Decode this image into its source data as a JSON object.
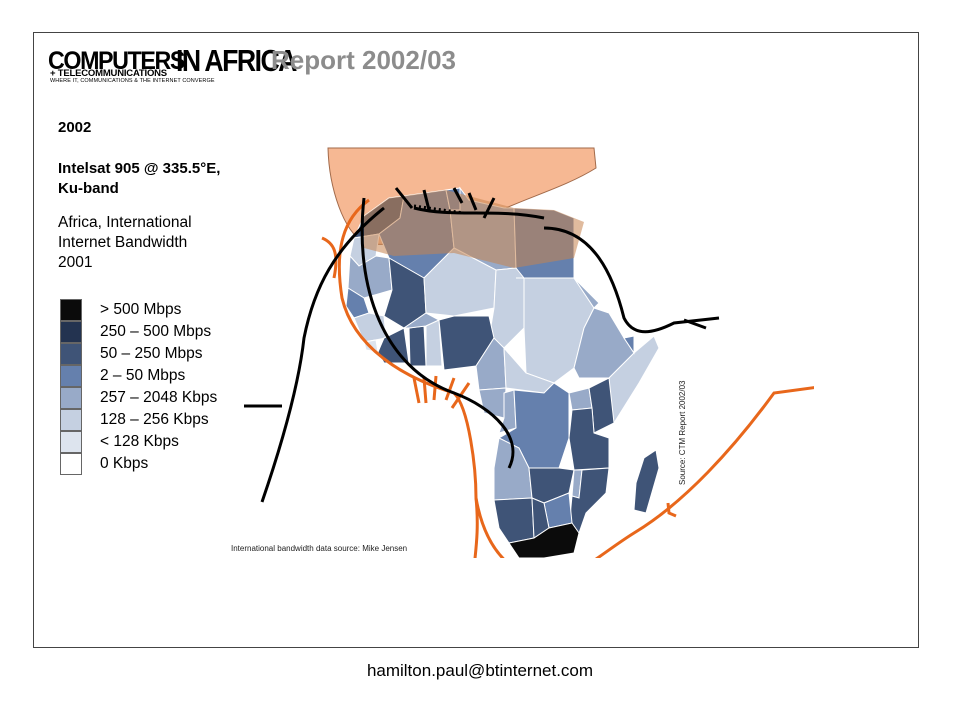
{
  "header": {
    "logo_main": "COMPUTERS",
    "logo_africa": "IN AFRICA",
    "logo_sub1": "+ TELECOMMUNICATIONS",
    "logo_sub2": "WHERE IT, COMMUNICATIONS & THE INTERNET CONVERGE",
    "report_title": "Report 2002/03"
  },
  "info": {
    "year": "2002",
    "satellite_line1": "Intelsat 905 @ 335.5°E,",
    "satellite_line2": "Ku-band",
    "desc_line1": "Africa, International",
    "desc_line2": "Internet Bandwidth",
    "desc_line3": "2001"
  },
  "legend": [
    {
      "label": "> 500 Mbps",
      "color": "#0b0b0b"
    },
    {
      "label": "250 – 500 Mbps",
      "color": "#233350"
    },
    {
      "label": "50 – 250 Mbps",
      "color": "#3f5477"
    },
    {
      "label": "2 – 50 Mbps",
      "color": "#6580ad"
    },
    {
      "label": "257 – 2048 Kbps",
      "color": "#98aac8"
    },
    {
      "label": "128 – 256 Kbps",
      "color": "#c5d0e1"
    },
    {
      "label": "< 128 Kbps",
      "color": "#dde4ee"
    },
    {
      "label": "0 Kbps",
      "color": "#ffffff"
    }
  ],
  "sources": {
    "bandwidth": "International bandwidth data source: Mike Jensen",
    "ctm": "Source: CTM Report 2002/03"
  },
  "footer": {
    "email": "hamilton.paul@btinternet.com"
  },
  "colors": {
    "beam": "#f6b893",
    "cable_orange": "#e8671b",
    "cable_black": "#000000"
  }
}
